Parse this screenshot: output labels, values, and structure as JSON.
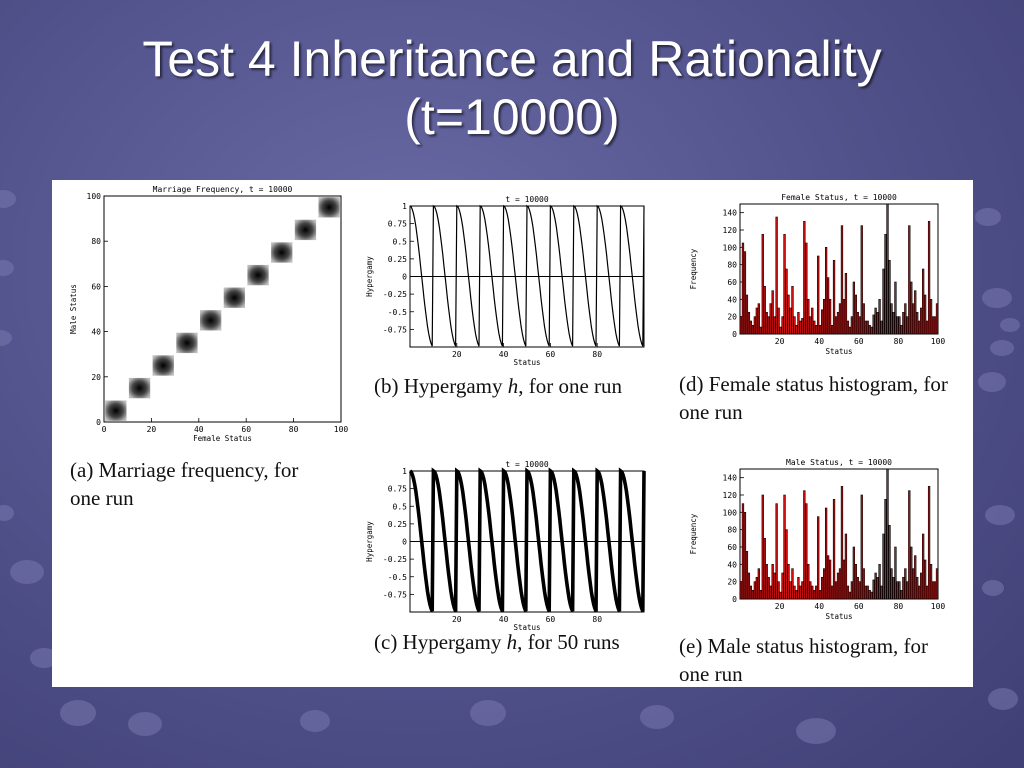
{
  "slide": {
    "title_line1": "Test 4 Inheritance and Rationality",
    "title_line2": "(t=10000)"
  },
  "captions": {
    "a": "(a) Marriage frequency, for one run",
    "b_pre": "(b) Hypergamy ",
    "b_var": "h",
    "b_post": ", for one run",
    "c_pre": "(c) Hypergamy ",
    "c_var": "h",
    "c_post": ", for 50 runs",
    "d": "(d) Female status histogram, for one run",
    "e": "(e) Male status histogram, for one run"
  },
  "chart_data": [
    {
      "id": "a",
      "type": "heatmap",
      "title": "Marriage Frequency, t = 10000",
      "xlabel": "Female Status",
      "ylabel": "Male Status",
      "xlim": [
        0,
        100
      ],
      "ylim": [
        0,
        100
      ],
      "xticks": [
        0,
        20,
        40,
        60,
        80,
        100
      ],
      "yticks": [
        0,
        20,
        40,
        60,
        80,
        100
      ],
      "clusters": [
        {
          "x": 5,
          "y": 5
        },
        {
          "x": 15,
          "y": 15
        },
        {
          "x": 25,
          "y": 25
        },
        {
          "x": 35,
          "y": 35
        },
        {
          "x": 45,
          "y": 45
        },
        {
          "x": 55,
          "y": 55
        },
        {
          "x": 65,
          "y": 65
        },
        {
          "x": 75,
          "y": 75
        },
        {
          "x": 85,
          "y": 85
        },
        {
          "x": 95,
          "y": 95
        }
      ],
      "cluster_halfwidth": 4.5,
      "grid": false
    },
    {
      "id": "b",
      "type": "line",
      "title": "t = 10000",
      "xlabel": "Status",
      "ylabel": "Hypergamy",
      "xlim": [
        0,
        100
      ],
      "ylim": [
        -1,
        1
      ],
      "xticks": [
        20,
        40,
        60,
        80
      ],
      "yticks": [
        1,
        0.75,
        0.5,
        0.25,
        0,
        -0.25,
        -0.5,
        -0.75
      ],
      "runs": 1,
      "period": 10,
      "description": "sawtooth pattern: drops from +1 at start of each decile to -1 at end, ten cycles",
      "grid": false
    },
    {
      "id": "c",
      "type": "line",
      "title": "t = 10000",
      "xlabel": "Status",
      "ylabel": "Hypergamy",
      "xlim": [
        0,
        100
      ],
      "ylim": [
        -1,
        1
      ],
      "xticks": [
        20,
        40,
        60,
        80
      ],
      "yticks": [
        1,
        0.75,
        0.5,
        0.25,
        0,
        -0.25,
        -0.5,
        -0.75
      ],
      "runs": 50,
      "period": 10,
      "grid": false
    },
    {
      "id": "d",
      "type": "bar",
      "title": "Female Status, t = 10000",
      "xlabel": "Status",
      "ylabel": "Frequency",
      "xlim": [
        0,
        100
      ],
      "ylim": [
        0,
        150
      ],
      "xticks": [
        20,
        40,
        60,
        80,
        100
      ],
      "yticks": [
        0,
        20,
        40,
        60,
        80,
        100,
        120,
        140
      ],
      "values": [
        20,
        105,
        95,
        45,
        25,
        15,
        10,
        20,
        30,
        35,
        8,
        115,
        55,
        25,
        20,
        35,
        50,
        20,
        135,
        30,
        8,
        20,
        115,
        75,
        45,
        30,
        55,
        20,
        10,
        25,
        15,
        18,
        130,
        105,
        40,
        20,
        30,
        15,
        10,
        90,
        10,
        28,
        40,
        100,
        65,
        40,
        10,
        85,
        20,
        25,
        35,
        125,
        40,
        70,
        15,
        8,
        20,
        60,
        45,
        25,
        20,
        125,
        35,
        15,
        15,
        10,
        8,
        22,
        30,
        25,
        40,
        15,
        75,
        115,
        152,
        85,
        35,
        25,
        60,
        20,
        20,
        10,
        25,
        35,
        20,
        125,
        60,
        35,
        50,
        25,
        15,
        30,
        75,
        45,
        15,
        130,
        40,
        20,
        20,
        35
      ],
      "color": "#cc1111",
      "outline": "#000000",
      "grid": false
    },
    {
      "id": "e",
      "type": "bar",
      "title": "Male Status, t = 10000",
      "xlabel": "Status",
      "ylabel": "Frequency",
      "xlim": [
        0,
        100
      ],
      "ylim": [
        0,
        150
      ],
      "xticks": [
        20,
        40,
        60,
        80,
        100
      ],
      "yticks": [
        0,
        20,
        40,
        60,
        80,
        100,
        120,
        140
      ],
      "values": [
        20,
        110,
        100,
        55,
        30,
        15,
        10,
        20,
        25,
        35,
        10,
        120,
        70,
        40,
        25,
        15,
        40,
        30,
        110,
        20,
        8,
        30,
        120,
        80,
        40,
        20,
        35,
        15,
        10,
        25,
        15,
        20,
        125,
        110,
        40,
        20,
        15,
        10,
        15,
        95,
        10,
        25,
        35,
        105,
        50,
        45,
        15,
        115,
        20,
        30,
        35,
        130,
        45,
        75,
        15,
        8,
        20,
        60,
        40,
        25,
        20,
        120,
        35,
        15,
        15,
        10,
        8,
        22,
        30,
        25,
        40,
        15,
        75,
        115,
        152,
        85,
        35,
        25,
        60,
        20,
        20,
        10,
        25,
        35,
        20,
        125,
        60,
        35,
        50,
        25,
        15,
        30,
        75,
        45,
        15,
        130,
        40,
        20,
        20,
        35
      ],
      "color": "#cc1111",
      "outline": "#000000",
      "grid": false
    }
  ]
}
